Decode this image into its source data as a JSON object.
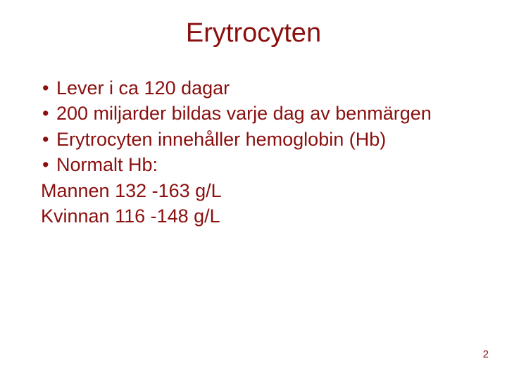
{
  "colors": {
    "text": "#8a0f0f",
    "background": "#ffffff"
  },
  "typography": {
    "title_fontsize": 38,
    "body_fontsize": 27,
    "pagenum_fontsize": 15,
    "font_family": "Verdana"
  },
  "title": "Erytrocyten",
  "bullets": [
    "Lever i ca 120 dagar",
    "200 miljarder bildas varje dag av benmärgen",
    "Erytrocyten innehåller hemoglobin (Hb)",
    "Normalt Hb:"
  ],
  "plain_lines": [
    "Mannen 132 -163 g/L",
    "Kvinnan 116 -148 g/L"
  ],
  "bullet_glyph": "•",
  "page_number": "2"
}
